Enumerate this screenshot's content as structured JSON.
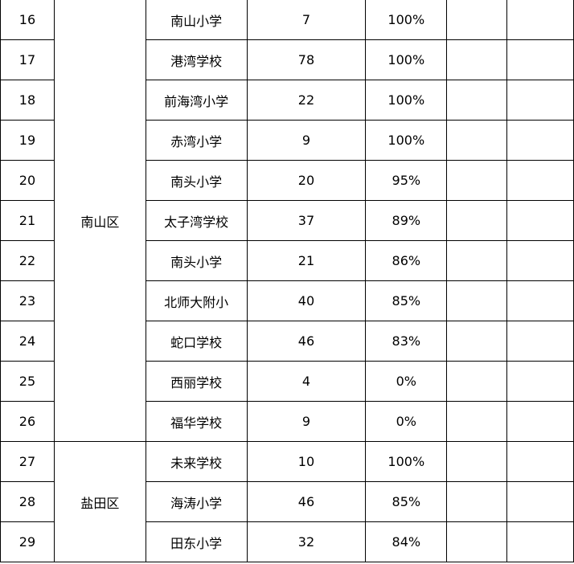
{
  "table": {
    "groups": [
      {
        "district": "南山区",
        "rows": [
          {
            "no": "16",
            "school": "南山小学",
            "count": "7",
            "rate": "100%"
          },
          {
            "no": "17",
            "school": "港湾学校",
            "count": "78",
            "rate": "100%"
          },
          {
            "no": "18",
            "school": "前海湾小学",
            "count": "22",
            "rate": "100%"
          },
          {
            "no": "19",
            "school": "赤湾小学",
            "count": "9",
            "rate": "100%"
          },
          {
            "no": "20",
            "school": "南头小学",
            "count": "20",
            "rate": "95%"
          },
          {
            "no": "21",
            "school": "太子湾学校",
            "count": "37",
            "rate": "89%"
          },
          {
            "no": "22",
            "school": "南头小学",
            "count": "21",
            "rate": "86%"
          },
          {
            "no": "23",
            "school": "北师大附小",
            "count": "40",
            "rate": "85%"
          },
          {
            "no": "24",
            "school": "蛇口学校",
            "count": "46",
            "rate": "83%"
          },
          {
            "no": "25",
            "school": "西丽学校",
            "count": "4",
            "rate": "0%"
          },
          {
            "no": "26",
            "school": "福华学校",
            "count": "9",
            "rate": "0%"
          }
        ]
      },
      {
        "district": "盐田区",
        "rows": [
          {
            "no": "27",
            "school": "未来学校",
            "count": "10",
            "rate": "100%"
          },
          {
            "no": "28",
            "school": "海涛小学",
            "count": "46",
            "rate": "85%"
          },
          {
            "no": "29",
            "school": "田东小学",
            "count": "32",
            "rate": "84%"
          }
        ]
      }
    ]
  }
}
